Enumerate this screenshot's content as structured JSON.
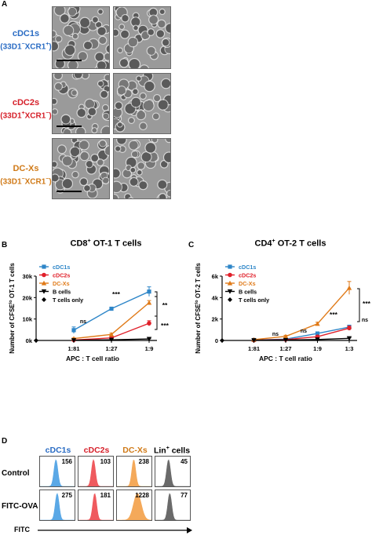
{
  "panel_a": {
    "letter": "A",
    "rows": [
      {
        "line1": "cDC1s",
        "line2": "(33D1",
        "sup1": "−",
        "mid": "XCR1",
        "sup2": "+",
        "end": ")",
        "color": "#2a6cc4"
      },
      {
        "line1": "cDC2s",
        "line2": "(33D1",
        "sup1": "+",
        "mid": "XCR1",
        "sup2": "−",
        "end": ")",
        "color": "#d6202a"
      },
      {
        "line1": "DC-Xs",
        "line2": "(33D1",
        "sup1": "−",
        "mid": "XCR1",
        "sup2": "−",
        "end": ")",
        "color": "#d07a18"
      }
    ]
  },
  "panel_b": {
    "letter": "B",
    "title_main": "CD8",
    "title_sup": "+",
    "title_rest": " OT-1  T cells",
    "ylabel_main": "Number of CFSE",
    "ylabel_sup": "lo",
    "ylabel_rest": " OT-1  T cells",
    "xlabel": "APC : T cell ratio",
    "annotations": [
      "ns",
      "***",
      "**",
      "***"
    ]
  },
  "panel_c": {
    "letter": "C",
    "title_main": "CD4",
    "title_sup": "+",
    "title_rest": " OT-2  T cells",
    "ylabel_main": "Number of CFSE",
    "ylabel_sup": "lo",
    "ylabel_rest": " OT-2  T cells",
    "xlabel": "APC : T cell ratio",
    "annotations": [
      "ns",
      "ns",
      "***",
      "***",
      "ns"
    ]
  },
  "chart_data": [
    {
      "type": "line",
      "panel": "B",
      "title": "CD8+ OT-1  T cells",
      "xlabel": "APC : T cell ratio",
      "ylabel": "Number of CFSElo OT-1  T cells",
      "categories": [
        "",
        "1:81",
        "1:27",
        "1:9"
      ],
      "y_ticks": [
        "0k",
        "10k",
        "20k",
        "30k"
      ],
      "ylim": [
        0,
        30000
      ],
      "legend_position": "top-left",
      "series": [
        {
          "name": "cDC1s",
          "color": "#2e86c8",
          "marker": "square",
          "values": [
            null,
            4800,
            14800,
            22800
          ],
          "errors": [
            null,
            1500,
            700,
            2200
          ]
        },
        {
          "name": "cDC2s",
          "color": "#e0202a",
          "marker": "circle",
          "values": [
            null,
            200,
            1200,
            8000
          ],
          "errors": [
            null,
            150,
            400,
            1200
          ]
        },
        {
          "name": "DC-Xs",
          "color": "#e07a18",
          "marker": "triangle",
          "values": [
            null,
            900,
            2800,
            17600
          ],
          "errors": [
            null,
            300,
            600,
            1000
          ]
        },
        {
          "name": "B cells",
          "color": "#000000",
          "marker": "tri-down",
          "values": [
            null,
            100,
            300,
            700
          ],
          "errors": [
            null,
            50,
            80,
            150
          ]
        },
        {
          "name": "T cells only",
          "color": "#000000",
          "marker": "diamond",
          "values": [
            0,
            null,
            null,
            null
          ],
          "errors": [
            0,
            null,
            null,
            null
          ]
        }
      ]
    },
    {
      "type": "line",
      "panel": "C",
      "title": "CD4+ OT-2  T cells",
      "xlabel": "APC : T cell ratio",
      "ylabel": "Number of CFSElo OT-2  T cells",
      "categories": [
        "",
        "1:81",
        "1:27",
        "1:9",
        "1:3"
      ],
      "y_ticks": [
        "0",
        "2k",
        "4k",
        "6k"
      ],
      "ylim": [
        0,
        6000
      ],
      "legend_position": "top-left",
      "series": [
        {
          "name": "cDC1s",
          "color": "#2e86c8",
          "marker": "square",
          "values": [
            null,
            40,
            120,
            650,
            1250
          ],
          "errors": [
            null,
            20,
            40,
            120,
            180
          ]
        },
        {
          "name": "cDC2s",
          "color": "#e0202a",
          "marker": "circle",
          "values": [
            null,
            30,
            80,
            350,
            1150
          ],
          "errors": [
            null,
            15,
            30,
            100,
            200
          ]
        },
        {
          "name": "DC-Xs",
          "color": "#e07a18",
          "marker": "triangle",
          "values": [
            null,
            80,
            380,
            1550,
            4900
          ],
          "errors": [
            null,
            40,
            100,
            150,
            600
          ]
        },
        {
          "name": "B cells",
          "color": "#000000",
          "marker": "tri-down",
          "values": [
            null,
            20,
            40,
            90,
            200
          ],
          "errors": [
            null,
            10,
            15,
            25,
            40
          ]
        },
        {
          "name": "T cells only",
          "color": "#000000",
          "marker": "diamond",
          "values": [
            0,
            null,
            null,
            null,
            null
          ],
          "errors": [
            0,
            null,
            null,
            null,
            null
          ]
        }
      ]
    }
  ],
  "panel_d": {
    "letter": "D",
    "columns": [
      {
        "label": "cDC1s",
        "color": "#2a6cc4",
        "fill": "#5aa8e6"
      },
      {
        "label": "cDC2s",
        "color": "#d6202a",
        "fill": "#ef5a5e"
      },
      {
        "label": "DC-Xs",
        "color": "#d07a18",
        "fill": "#f4a95a"
      },
      {
        "label": "Lin",
        "sup": "+",
        "label_rest": " cells",
        "color": "#000000",
        "fill": "#6a6a6a"
      }
    ],
    "rows": [
      {
        "label": "Control",
        "values": [
          "156",
          "103",
          "238",
          "45"
        ]
      },
      {
        "label": "FITC-OVA",
        "values": [
          "275",
          "181",
          "1228",
          "77"
        ]
      }
    ],
    "axis_label": "FITC"
  }
}
